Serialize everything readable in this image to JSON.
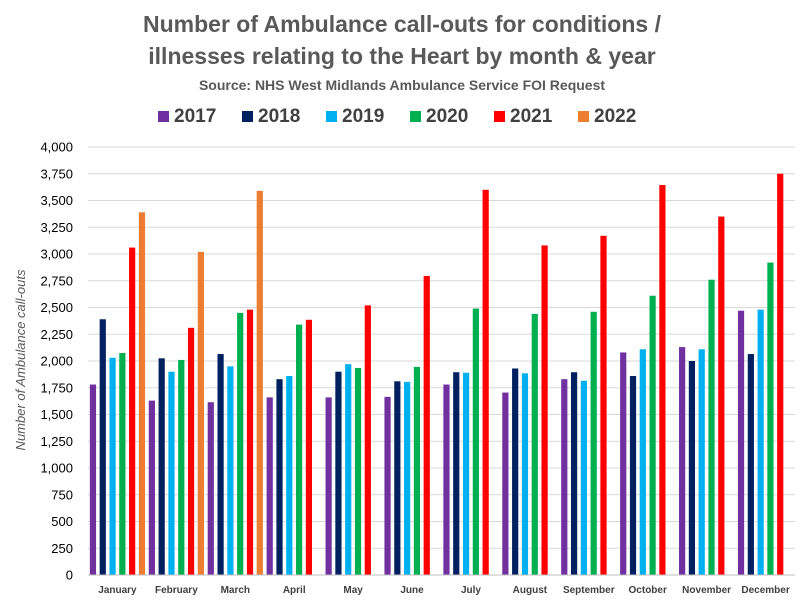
{
  "chart_data": {
    "type": "bar",
    "title_lines": [
      "Number of Ambulance call-outs for conditions /",
      "illnesses relating to the Heart by month & year"
    ],
    "subtitle": "Source: NHS West Midlands Ambulance Service FOI Request",
    "ylabel": "Number of Ambulance call-outs",
    "xlabel": "",
    "ylim": [
      0,
      4000
    ],
    "y_ticks": [
      "0",
      "250",
      "500",
      "750",
      "1,000",
      "1,250",
      "1,500",
      "1,750",
      "2,000",
      "2,250",
      "2,500",
      "2,750",
      "3,000",
      "3,250",
      "3,500",
      "3,750",
      "4,000"
    ],
    "grid": true,
    "legend_position": "top",
    "categories": [
      "January",
      "February",
      "March",
      "April",
      "May",
      "June",
      "July",
      "August",
      "September",
      "October",
      "November",
      "December"
    ],
    "series": [
      {
        "name": "2017",
        "color": "#7030a0",
        "values": [
          1780,
          1630,
          1615,
          1660,
          1660,
          1665,
          1780,
          1705,
          1830,
          2080,
          2130,
          2470
        ]
      },
      {
        "name": "2018",
        "color": "#002060",
        "values": [
          2390,
          2025,
          2065,
          1830,
          1900,
          1810,
          1895,
          1930,
          1895,
          1860,
          2000,
          2065
        ]
      },
      {
        "name": "2019",
        "color": "#00b0f0",
        "values": [
          2030,
          1900,
          1950,
          1860,
          1970,
          1805,
          1890,
          1885,
          1815,
          2110,
          2110,
          2480
        ]
      },
      {
        "name": "2020",
        "color": "#00b050",
        "values": [
          2075,
          2010,
          2450,
          2340,
          1935,
          1945,
          2490,
          2440,
          2460,
          2610,
          2760,
          2920
        ]
      },
      {
        "name": "2021",
        "color": "#ff0000",
        "values": [
          3060,
          2310,
          2480,
          2385,
          2520,
          2795,
          3600,
          3080,
          3170,
          3645,
          3350,
          3750
        ]
      },
      {
        "name": "2022",
        "color": "#ed7d31",
        "values": [
          3390,
          3020,
          3590,
          null,
          null,
          null,
          null,
          null,
          null,
          null,
          null,
          null
        ]
      }
    ]
  }
}
